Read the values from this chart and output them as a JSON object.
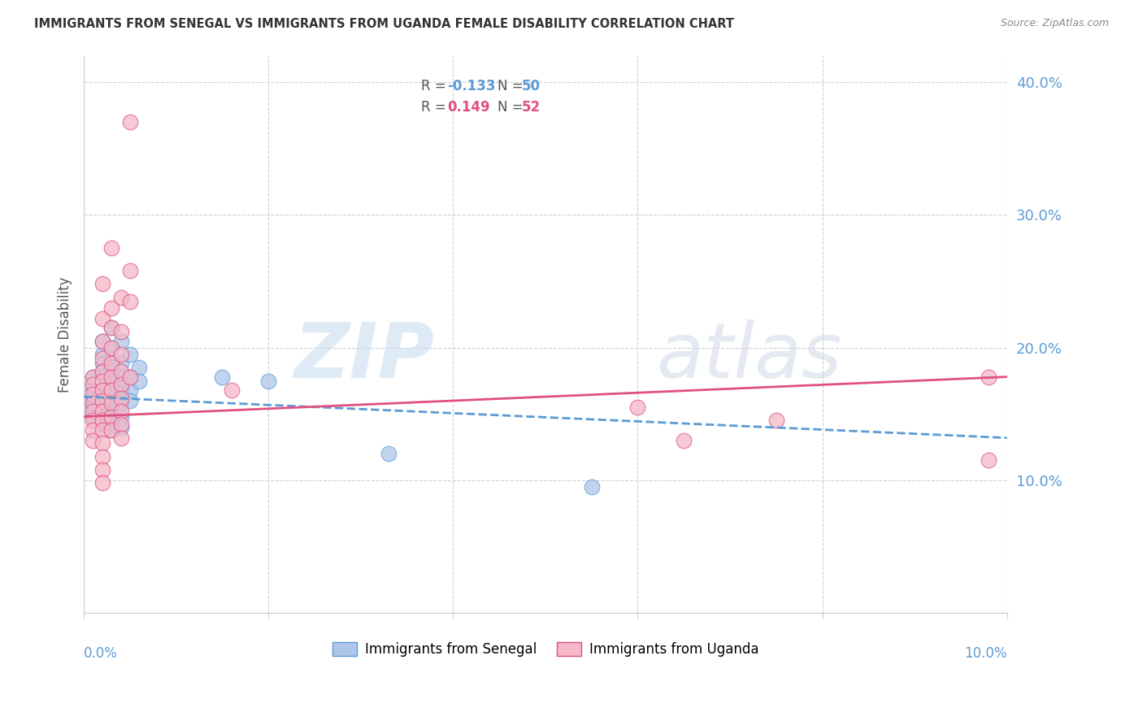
{
  "title": "IMMIGRANTS FROM SENEGAL VS IMMIGRANTS FROM UGANDA FEMALE DISABILITY CORRELATION CHART",
  "source": "Source: ZipAtlas.com",
  "ylabel": "Female Disability",
  "watermark_zip": "ZIP",
  "watermark_atlas": "atlas",
  "senegal_color": "#aec6e8",
  "senegal_edge_color": "#5b9bd5",
  "uganda_color": "#f4b8c8",
  "uganda_edge_color": "#e05080",
  "senegal_line_color": "#5b9bd5",
  "uganda_line_color": "#e05080",
  "background_color": "#ffffff",
  "grid_color": "#d0d0d0",
  "right_tick_color": "#5b9bd5",
  "xlim": [
    0.0,
    0.1
  ],
  "ylim": [
    0.0,
    0.42
  ],
  "ytick_vals": [
    0.1,
    0.2,
    0.3,
    0.4
  ],
  "ytick_labels": [
    "10.0%",
    "20.0%",
    "30.0%",
    "40.0%"
  ],
  "xtick_vals": [
    0.0,
    0.02,
    0.04,
    0.06,
    0.08,
    0.1
  ],
  "senegal_R": "-0.133",
  "senegal_N": "50",
  "uganda_R": "0.149",
  "uganda_N": "52",
  "senegal_points": [
    [
      0.001,
      0.178
    ],
    [
      0.001,
      0.172
    ],
    [
      0.001,
      0.168
    ],
    [
      0.001,
      0.162
    ],
    [
      0.001,
      0.158
    ],
    [
      0.001,
      0.155
    ],
    [
      0.001,
      0.152
    ],
    [
      0.001,
      0.148
    ],
    [
      0.002,
      0.205
    ],
    [
      0.002,
      0.195
    ],
    [
      0.002,
      0.188
    ],
    [
      0.002,
      0.182
    ],
    [
      0.002,
      0.178
    ],
    [
      0.002,
      0.173
    ],
    [
      0.002,
      0.168
    ],
    [
      0.002,
      0.162
    ],
    [
      0.002,
      0.158
    ],
    [
      0.002,
      0.152
    ],
    [
      0.002,
      0.148
    ],
    [
      0.002,
      0.142
    ],
    [
      0.003,
      0.215
    ],
    [
      0.003,
      0.2
    ],
    [
      0.003,
      0.192
    ],
    [
      0.003,
      0.185
    ],
    [
      0.003,
      0.178
    ],
    [
      0.003,
      0.172
    ],
    [
      0.003,
      0.165
    ],
    [
      0.003,
      0.158
    ],
    [
      0.003,
      0.152
    ],
    [
      0.003,
      0.148
    ],
    [
      0.003,
      0.142
    ],
    [
      0.003,
      0.138
    ],
    [
      0.004,
      0.205
    ],
    [
      0.004,
      0.188
    ],
    [
      0.004,
      0.178
    ],
    [
      0.004,
      0.17
    ],
    [
      0.004,
      0.165
    ],
    [
      0.004,
      0.158
    ],
    [
      0.004,
      0.148
    ],
    [
      0.004,
      0.14
    ],
    [
      0.005,
      0.195
    ],
    [
      0.005,
      0.178
    ],
    [
      0.005,
      0.168
    ],
    [
      0.005,
      0.16
    ],
    [
      0.006,
      0.185
    ],
    [
      0.006,
      0.175
    ],
    [
      0.015,
      0.178
    ],
    [
      0.02,
      0.175
    ],
    [
      0.033,
      0.12
    ],
    [
      0.055,
      0.095
    ]
  ],
  "uganda_points": [
    [
      0.001,
      0.178
    ],
    [
      0.001,
      0.172
    ],
    [
      0.001,
      0.165
    ],
    [
      0.001,
      0.158
    ],
    [
      0.001,
      0.152
    ],
    [
      0.001,
      0.145
    ],
    [
      0.001,
      0.138
    ],
    [
      0.001,
      0.13
    ],
    [
      0.002,
      0.248
    ],
    [
      0.002,
      0.222
    ],
    [
      0.002,
      0.205
    ],
    [
      0.002,
      0.192
    ],
    [
      0.002,
      0.182
    ],
    [
      0.002,
      0.175
    ],
    [
      0.002,
      0.168
    ],
    [
      0.002,
      0.16
    ],
    [
      0.002,
      0.152
    ],
    [
      0.002,
      0.145
    ],
    [
      0.002,
      0.138
    ],
    [
      0.002,
      0.128
    ],
    [
      0.002,
      0.118
    ],
    [
      0.002,
      0.108
    ],
    [
      0.002,
      0.098
    ],
    [
      0.003,
      0.275
    ],
    [
      0.003,
      0.23
    ],
    [
      0.003,
      0.215
    ],
    [
      0.003,
      0.2
    ],
    [
      0.003,
      0.188
    ],
    [
      0.003,
      0.178
    ],
    [
      0.003,
      0.168
    ],
    [
      0.003,
      0.158
    ],
    [
      0.003,
      0.148
    ],
    [
      0.003,
      0.138
    ],
    [
      0.004,
      0.238
    ],
    [
      0.004,
      0.212
    ],
    [
      0.004,
      0.195
    ],
    [
      0.004,
      0.182
    ],
    [
      0.004,
      0.172
    ],
    [
      0.004,
      0.162
    ],
    [
      0.004,
      0.152
    ],
    [
      0.004,
      0.142
    ],
    [
      0.004,
      0.132
    ],
    [
      0.005,
      0.37
    ],
    [
      0.005,
      0.258
    ],
    [
      0.005,
      0.235
    ],
    [
      0.005,
      0.178
    ],
    [
      0.016,
      0.168
    ],
    [
      0.06,
      0.155
    ],
    [
      0.065,
      0.13
    ],
    [
      0.075,
      0.145
    ],
    [
      0.098,
      0.178
    ],
    [
      0.098,
      0.115
    ]
  ],
  "senegal_line_x": [
    0.0,
    0.1
  ],
  "senegal_line_y": [
    0.163,
    0.132
  ],
  "uganda_line_x": [
    0.0,
    0.1
  ],
  "uganda_line_y": [
    0.148,
    0.178
  ]
}
